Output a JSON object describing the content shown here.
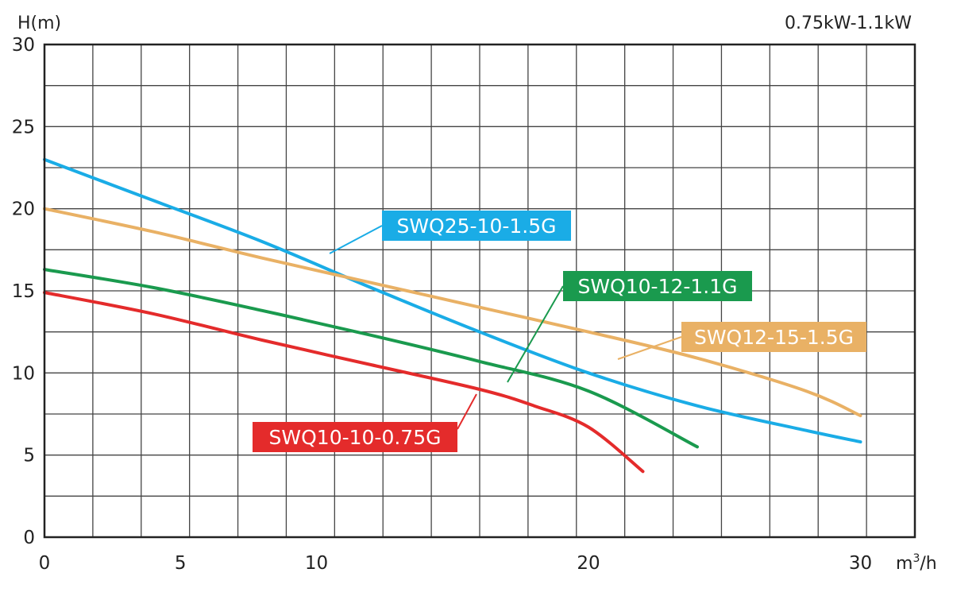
{
  "chart_data": {
    "type": "line",
    "power_range": "0.75kW-1.1kW",
    "ylabel": "H(m)",
    "xlabel_base": "m",
    "xlabel_sup": "3",
    "xlabel_tail": "/h",
    "xlim": [
      0,
      32
    ],
    "ylim": [
      0,
      30
    ],
    "x_ticks": [
      0,
      5,
      10,
      20,
      30
    ],
    "y_ticks": [
      0,
      5,
      10,
      15,
      20,
      25,
      30
    ],
    "grid": true,
    "series": [
      {
        "name": "SWQ25-10-1.5G",
        "color": "#1aace6",
        "label_bg": "#1aace6",
        "label_text": "#ffffff",
        "x": [
          0,
          4,
          8,
          12,
          16,
          20,
          24,
          28,
          30
        ],
        "y": [
          23.0,
          20.5,
          18.0,
          15.2,
          12.5,
          10.0,
          8.0,
          6.5,
          5.8
        ]
      },
      {
        "name": "SWQ12-15-1.5G",
        "color": "#e9b165",
        "label_bg": "#e9b165",
        "label_text": "#ffffff",
        "x": [
          0,
          4,
          8,
          12,
          16,
          20,
          24,
          28,
          30
        ],
        "y": [
          20.0,
          18.6,
          17.0,
          15.5,
          14.0,
          12.5,
          10.9,
          8.9,
          7.4
        ]
      },
      {
        "name": "SWQ10-12-1.1G",
        "color": "#1a9a4e",
        "label_bg": "#1a9a4e",
        "label_text": "#ffffff",
        "x": [
          0,
          4,
          8,
          12,
          16,
          20,
          24
        ],
        "y": [
          16.3,
          15.2,
          13.8,
          12.3,
          10.7,
          8.9,
          5.5
        ]
      },
      {
        "name": "SWQ10-10-0.75G",
        "color": "#e42b2b",
        "label_bg": "#e42b2b",
        "label_text": "#ffffff",
        "x": [
          0,
          4,
          8,
          12,
          16,
          18,
          20,
          22
        ],
        "y": [
          14.9,
          13.6,
          12.0,
          10.5,
          9.0,
          8.0,
          6.7,
          4.0
        ]
      }
    ]
  }
}
